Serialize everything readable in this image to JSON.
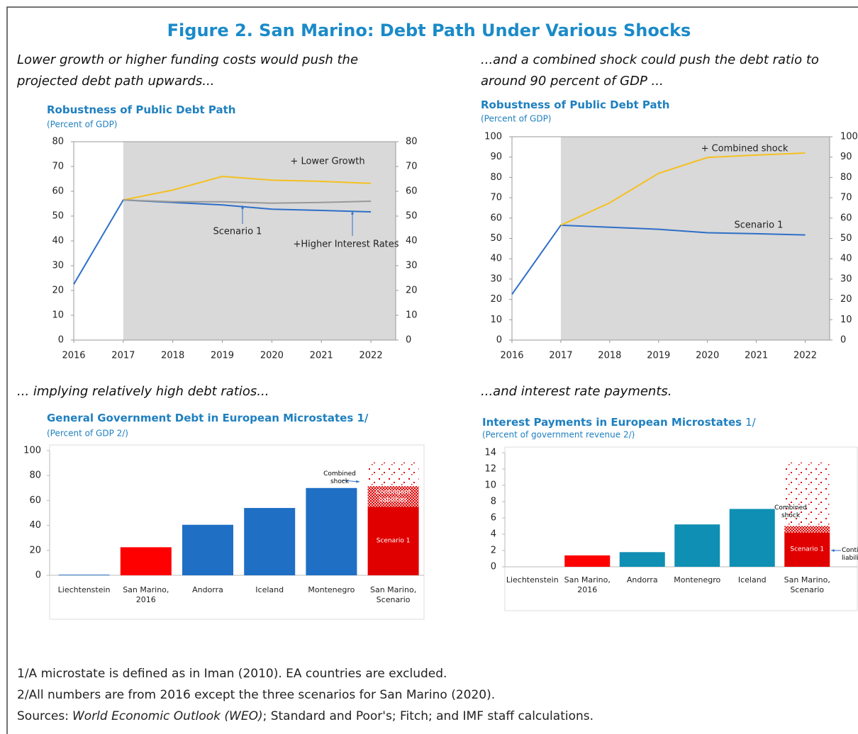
{
  "title": "Figure 2. San Marino: Debt Path Under Various Shocks",
  "captions": [
    "Lower growth or higher funding costs would push the projected debt path upwards...",
    "...and a combined shock could push the debt ratio to around 90 percent of GDP ...",
    "... implying relatively high debt ratios...",
    "...and interest rate payments."
  ],
  "chart_data": [
    {
      "type": "line",
      "title": "Robustness of Public Debt Path",
      "subtitle": "(Percent of GDP)",
      "x": [
        2016,
        2017,
        2018,
        2019,
        2020,
        2021,
        2022
      ],
      "xlim": [
        2016,
        2022.5
      ],
      "xticks": [
        2016,
        2017,
        2018,
        2019,
        2020,
        2021,
        2022
      ],
      "ylim": [
        0,
        80
      ],
      "yticks": [
        0,
        10,
        20,
        30,
        40,
        50,
        60,
        70,
        80
      ],
      "y2lim": [
        0,
        80
      ],
      "y2ticks": [
        0,
        10,
        20,
        30,
        40,
        50,
        60,
        70,
        80
      ],
      "shaded_from": 2017,
      "shade_color": "#d9d9d9",
      "series": [
        {
          "name": "Scenario 1",
          "color": "#2e6fc7",
          "values": [
            22.5,
            56.5,
            55.5,
            54.5,
            52.8,
            52.3,
            51.7
          ]
        },
        {
          "name": "+ Lower Growth",
          "color": "#f4c020",
          "values": [
            null,
            56.5,
            60.5,
            66,
            64.5,
            64,
            63.2
          ]
        },
        {
          "name": "+Higher Interest Rates",
          "color": "#999999",
          "values": [
            null,
            56.5,
            55.8,
            55.8,
            55.2,
            55.5,
            56
          ]
        }
      ]
    },
    {
      "type": "line",
      "title": "Robustness of Public Debt Path",
      "subtitle": "(Percent of GDP)",
      "x": [
        2016,
        2017,
        2018,
        2019,
        2020,
        2021,
        2022
      ],
      "xlim": [
        2016,
        2022.5
      ],
      "xticks": [
        2016,
        2017,
        2018,
        2019,
        2020,
        2021,
        2022
      ],
      "ylim": [
        0,
        100
      ],
      "yticks": [
        0,
        10,
        20,
        30,
        40,
        50,
        60,
        70,
        80,
        90,
        100
      ],
      "y2lim": [
        0,
        100
      ],
      "y2ticks": [
        0,
        10,
        20,
        30,
        40,
        50,
        60,
        70,
        80,
        90,
        100
      ],
      "shaded_from": 2017,
      "shade_color": "#d9d9d9",
      "series": [
        {
          "name": "Scenario 1",
          "color": "#2e6fc7",
          "values": [
            22.5,
            56.5,
            55.5,
            54.5,
            52.8,
            52.3,
            51.7
          ]
        },
        {
          "name": "+ Combined shock",
          "color": "#f4c020",
          "values": [
            null,
            56.5,
            67.5,
            82,
            89.8,
            91,
            92
          ]
        }
      ]
    },
    {
      "type": "stacked_bar",
      "title": "General Government Debt in European Microstates 1/",
      "subtitle": "(Percent of GDP 2/)",
      "categories": [
        "Liechtenstein",
        "San Marino, 2016",
        "Andorra",
        "Iceland",
        "Montenegro",
        "San Marino, Scenario"
      ],
      "ylim": [
        0,
        100
      ],
      "yticks": [
        0,
        20,
        40,
        60,
        80,
        100
      ],
      "series": [
        {
          "name": "Scenario 1",
          "colors": [
            "#1f6fc5",
            "#ff0000",
            "#1f6fc5",
            "#1f6fc5",
            "#1f6fc5",
            "#e00000"
          ],
          "values": [
            0.5,
            22.5,
            40.5,
            54,
            70,
            55
          ]
        },
        {
          "name": "Contingent liabilities",
          "color": "#e00000",
          "pattern": "checker",
          "values": [
            null,
            null,
            null,
            null,
            null,
            16.5
          ]
        },
        {
          "name": "Combined shock",
          "color": "#e00000",
          "pattern": "dots",
          "values": [
            null,
            null,
            null,
            null,
            null,
            19
          ]
        }
      ]
    },
    {
      "type": "stacked_bar",
      "title": "Interest Payments in European Microstates",
      "title_note": "1/",
      "subtitle": "(Percent of government revenue 2/)",
      "categories": [
        "Liechtenstein",
        "San Marino, 2016",
        "Andorra",
        "Montenegro",
        "Iceland",
        "San Marino, Scenario"
      ],
      "ylim": [
        0,
        14
      ],
      "yticks": [
        0,
        2,
        4,
        6,
        8,
        10,
        12,
        14
      ],
      "series": [
        {
          "name": "Scenario 1",
          "colors": [
            "#0f8fb4",
            "#ff0000",
            "#0f8fb4",
            "#0f8fb4",
            "#0f8fb4",
            "#e00000"
          ],
          "values": [
            0,
            1.4,
            1.8,
            5.2,
            7.1,
            4.2
          ]
        },
        {
          "name": "Contingent liabilities",
          "color": "#e00000",
          "pattern": "checker",
          "values": [
            null,
            null,
            null,
            null,
            null,
            0.8
          ]
        },
        {
          "name": "Combined shock",
          "color": "#e00000",
          "pattern": "dots",
          "values": [
            null,
            null,
            null,
            null,
            null,
            7.8
          ]
        }
      ]
    }
  ],
  "notes": [
    "1/A microstate is defined as in Iman (2010). EA countries are excluded.",
    "2/All numbers are from 2016 except the three scenarios for San Marino (2020)."
  ],
  "sources": {
    "label": "Sources:",
    "italic": "World Economic Outlook (WEO)",
    "rest": "; Standard and Poor's; Fitch; and IMF staff calculations."
  }
}
